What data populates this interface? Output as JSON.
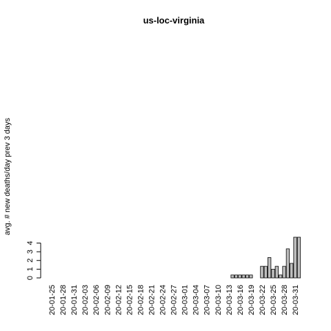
{
  "chart_data": {
    "type": "bar",
    "title": "us-loc-virginia",
    "y_label": "avg. # new deaths/day prev  3  days",
    "categories": [
      "20-01-25",
      null,
      null,
      "20-01-28",
      null,
      null,
      "20-01-31",
      null,
      null,
      "20-02-03",
      null,
      null,
      "20-02-06",
      null,
      null,
      "20-02-09",
      null,
      null,
      "20-02-12",
      null,
      null,
      "20-02-15",
      null,
      null,
      "20-02-18",
      null,
      null,
      "20-02-21",
      null,
      null,
      "20-02-24",
      null,
      null,
      "20-02-27",
      null,
      null,
      "20-03-01",
      null,
      null,
      "20-03-04",
      null,
      null,
      "20-03-07",
      null,
      null,
      "20-03-10",
      null,
      null,
      "20-03-13",
      null,
      null,
      "20-03-16",
      null,
      null,
      "20-03-19",
      null,
      null,
      "20-03-22",
      null,
      null,
      "20-03-25",
      null,
      null,
      "20-03-28",
      null,
      null,
      "20-03-31",
      null
    ],
    "values": [
      0,
      0,
      0,
      0,
      0,
      0,
      0,
      0,
      0,
      0,
      0,
      0,
      0,
      0,
      0,
      0,
      0,
      0,
      0,
      0,
      0,
      0,
      0,
      0,
      0,
      0,
      0,
      0,
      0,
      0,
      0,
      0,
      0,
      0,
      0,
      0,
      0,
      0,
      0,
      0,
      0,
      0,
      0,
      0,
      0,
      0,
      0,
      0,
      0,
      0.333,
      0.333,
      0.333,
      0.333,
      0.333,
      0.333,
      0,
      0,
      1.333,
      1.333,
      2.333,
      1,
      1.333,
      0.333,
      1.333,
      3.333,
      1.667,
      4.667,
      4.667
    ],
    "color": "#bebebe",
    "ylim": [
      0,
      4.667
    ],
    "yticks": [
      0,
      1,
      2,
      3,
      4
    ]
  }
}
